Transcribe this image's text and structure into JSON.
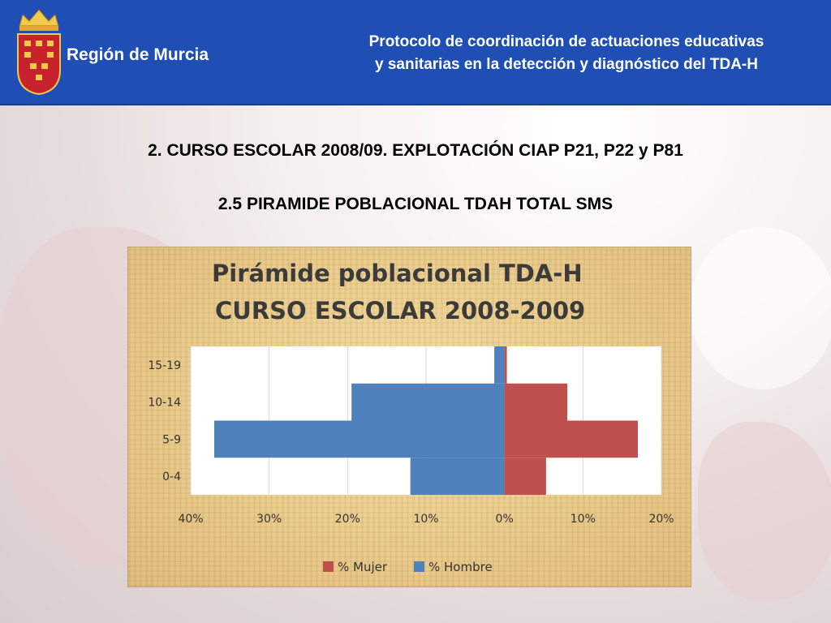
{
  "header": {
    "region_name": "Región de Murcia",
    "title_line1": "Protocolo de coordinación de actuaciones educativas",
    "title_line2": "y sanitarias en la detección y diagnóstico del TDA-H"
  },
  "headings": {
    "section": "2. CURSO ESCOLAR 2008/09. EXPLOTACIÓN CIAP P21, P22 y P81",
    "subsection": "2.5 PIRAMIDE POBLACIONAL TDAH TOTAL SMS"
  },
  "colors": {
    "header_bg": "#1f4fb5",
    "mujer": "#c0504d",
    "hombre": "#4f81bd"
  },
  "chart_data": {
    "type": "bar",
    "orientation": "horizontal-pyramid",
    "title_line1": "Pirámide poblacional TDA-H",
    "title_line2": "CURSO ESCOLAR 2008-2009",
    "categories": [
      "0-4",
      "5-9",
      "10-14",
      "15-19"
    ],
    "series": [
      {
        "name": "% Mujer",
        "color": "#c0504d",
        "values": [
          5.3,
          17,
          8,
          0.3
        ]
      },
      {
        "name": "% Hombre",
        "color": "#4f81bd",
        "values": [
          12,
          37,
          19.5,
          1.3
        ]
      }
    ],
    "x_ticks": [
      "40%",
      "30%",
      "20%",
      "10%",
      "0%",
      "10%",
      "20%"
    ],
    "xlim": [
      -40,
      20
    ],
    "grid": true,
    "legend_position": "bottom"
  }
}
